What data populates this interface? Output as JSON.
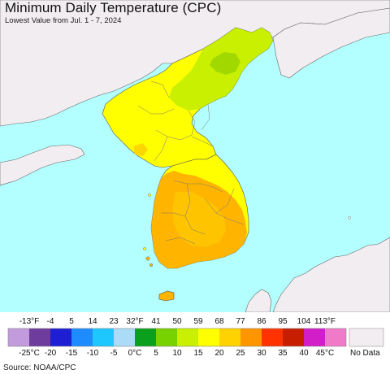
{
  "header": {
    "title": "Minimum Daily Temperature (CPC)",
    "subtitle": "Lowest Value from Jul. 1 - 7, 2024"
  },
  "colors": {
    "ocean": "#b3ffff",
    "land_nodata": "#f1edf1",
    "yellow": "#ffff00",
    "yellow_green": "#c8f000",
    "green": "#a0d800",
    "gold": "#ffd700",
    "orange": "#ffb400",
    "border": "#555555"
  },
  "legend": {
    "fahrenheit_labels": [
      "-13°F",
      "-4",
      "5",
      "14",
      "23",
      "32°F",
      "41",
      "50",
      "59",
      "68",
      "77",
      "86",
      "95",
      "104",
      "113°F"
    ],
    "celsius_labels": [
      "-25°C",
      "-20",
      "-15",
      "-10",
      "-5",
      "0°C",
      "5",
      "10",
      "15",
      "20",
      "25",
      "30",
      "35",
      "40",
      "45°C"
    ],
    "swatch_colors": [
      "#c29bdc",
      "#6e3c9c",
      "#1e1ed2",
      "#1e8cff",
      "#1ec8ff",
      "#aadcf8",
      "#0aa01e",
      "#78d200",
      "#c8f000",
      "#ffff00",
      "#ffd200",
      "#ff9600",
      "#ff3200",
      "#c81e00",
      "#d21ec8",
      "#f07ac8"
    ],
    "nodata_label": "No Data",
    "nodata_color": "#f1edf1"
  },
  "footer": {
    "source": "Source: NOAA/CPC"
  }
}
